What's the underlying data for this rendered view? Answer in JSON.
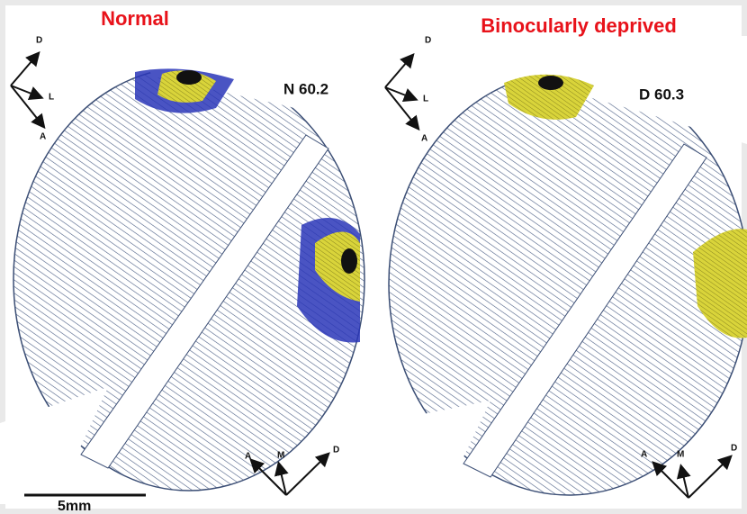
{
  "panels": [
    {
      "title": "Normal",
      "specimen": "N 60.2",
      "compass_top": [
        "D",
        "L",
        "A"
      ],
      "compass_bottom": [
        "A",
        "M",
        "D"
      ]
    },
    {
      "title": "Binocularly deprived",
      "specimen": "D 60.3",
      "compass_top": [
        "D",
        "L",
        "A"
      ],
      "compass_bottom": [
        "A",
        "M",
        "D"
      ]
    }
  ],
  "scale_bar": "5mm"
}
